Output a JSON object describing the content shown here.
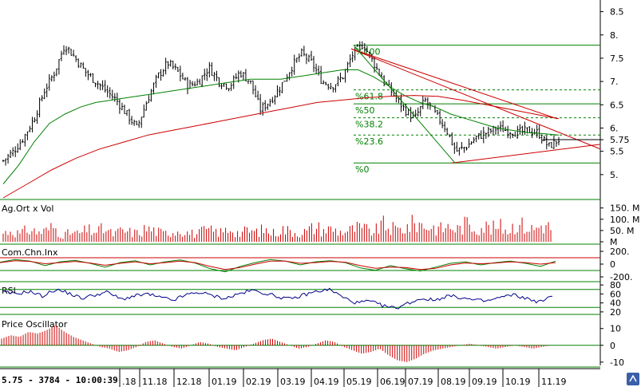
{
  "colors": {
    "candle": "#000000",
    "ma_fast": "#008000",
    "ma_slow": "#cc0000",
    "volume": "#cc0000",
    "fib_line": "#008000",
    "rsi": "#00008b",
    "oscillator": "#cc0000"
  },
  "status_bar": "5.75 - 3784 - 10:00:39",
  "chart_data": [
    {
      "type": "line",
      "panel": "price",
      "title": "",
      "yticks": [
        "8.5",
        "8.",
        "7.5",
        "7.",
        "6.5",
        "6.",
        "5.75",
        "5.5",
        "5."
      ],
      "ylim": [
        4.5,
        8.75
      ],
      "xticks": [
        ".18",
        "11.18",
        "12.18",
        "01.19",
        "02.19",
        "03.19",
        "04.19",
        "05.19",
        "06.19",
        "07.19",
        "08.19",
        "09.19",
        "10.19",
        "11.19"
      ],
      "last_value": 5.75,
      "fibonacci_levels": [
        {
          "label": "%100",
          "value": 7.78
        },
        {
          "label": "%61.8",
          "value": 6.82
        },
        {
          "label": "%50",
          "value": 6.52
        },
        {
          "label": "%38.2",
          "value": 6.22
        },
        {
          "label": "%23.6",
          "value": 5.85
        },
        {
          "label": "%0",
          "value": 5.25
        }
      ],
      "series": [
        {
          "values": [
            5.3,
            5.5,
            5.8,
            6.2,
            6.8,
            7.2,
            7.8,
            7.5,
            7.2,
            7.0,
            6.8,
            6.6,
            6.3,
            6.0,
            6.6,
            7.1,
            7.4,
            7.2,
            6.9,
            7.0,
            7.3,
            7.0,
            6.9,
            7.2,
            7.0,
            6.4,
            6.6,
            6.9,
            7.3,
            7.6,
            7.4,
            7.0,
            6.9,
            7.1,
            7.6,
            7.8,
            7.4,
            7.0,
            6.7,
            6.4,
            6.2,
            6.6,
            6.3,
            6.0,
            5.5,
            5.6,
            5.8,
            5.9,
            6.0,
            5.95,
            5.9,
            5.95,
            5.9,
            5.6,
            5.75
          ]
        },
        {
          "values": [
            4.8,
            5.2,
            5.7,
            6.1,
            6.3,
            6.45,
            6.55,
            6.6,
            6.65,
            6.7,
            6.75,
            6.8,
            6.85,
            6.9,
            6.95,
            7.0,
            7.05,
            7.05,
            7.05,
            7.1,
            7.15,
            7.2,
            7.25,
            7.25,
            7.1,
            6.9,
            6.7,
            6.55,
            6.45,
            6.3,
            6.2,
            6.1,
            6.0,
            5.95,
            5.9,
            5.88,
            5.85
          ]
        },
        {
          "values": [
            4.5,
            4.8,
            5.1,
            5.35,
            5.55,
            5.7,
            5.85,
            5.95,
            6.05,
            6.15,
            6.25,
            6.35,
            6.45,
            6.55,
            6.6,
            6.65,
            6.68,
            6.7,
            6.68,
            6.6,
            6.5,
            6.4,
            6.3,
            6.2
          ]
        }
      ],
      "trendlines": [
        {
          "from": [
            7.7
          ],
          "to": [
            6.2
          ]
        },
        {
          "from": [
            7.7
          ],
          "to": [
            5.55
          ]
        },
        {
          "from": [
            5.25
          ],
          "to": [
            5.65
          ]
        }
      ]
    },
    {
      "type": "bar",
      "panel": "volume",
      "title": "Ag.Ort x Vol",
      "yticks": [
        "150. M",
        "100. M",
        "50. M",
        "M"
      ],
      "ylim": [
        0,
        170
      ],
      "values": [
        40,
        55,
        35,
        60,
        45,
        50,
        70,
        30,
        42,
        38,
        55,
        48,
        60,
        35,
        50,
        45,
        40,
        62,
        52,
        38,
        47,
        58,
        41,
        36,
        54,
        49,
        44,
        66,
        38,
        52,
        45,
        57,
        40,
        60,
        50,
        43,
        48,
        70,
        55,
        60,
        46,
        52,
        64,
        58,
        45,
        80,
        62,
        55,
        70,
        90,
        75,
        68,
        60,
        72,
        58,
        85,
        66,
        74,
        62,
        70,
        55,
        90,
        68,
        58,
        80,
        66
      ]
    },
    {
      "type": "line",
      "panel": "cci",
      "title": "Com.Chn.Inx",
      "yticks": [
        "200.",
        "0",
        "-200."
      ],
      "ylim": [
        -250,
        250
      ],
      "series": [
        {
          "values": [
            50,
            120,
            80,
            -40,
            60,
            100,
            20,
            -80,
            40,
            90,
            -20,
            60,
            110,
            30,
            -120,
            -200,
            -60,
            40,
            120,
            80,
            -20,
            60,
            90,
            40,
            -100,
            -160,
            -40,
            -120,
            -180,
            -80,
            20,
            60,
            -20,
            40,
            80,
            20,
            -60,
            80
          ]
        },
        {
          "values": [
            40,
            90,
            70,
            10,
            40,
            70,
            30,
            -30,
            20,
            60,
            10,
            40,
            80,
            40,
            -60,
            -140,
            -90,
            0,
            80,
            80,
            20,
            40,
            70,
            50,
            -40,
            -110,
            -80,
            -90,
            -140,
            -110,
            -20,
            30,
            10,
            30,
            60,
            40,
            0,
            40
          ]
        }
      ]
    },
    {
      "type": "line",
      "panel": "rsi",
      "title": "RSI",
      "yticks": [
        "80",
        "60",
        "40",
        "20"
      ],
      "ylim": [
        18,
        82
      ],
      "values": [
        64,
        60,
        66,
        55,
        70,
        62,
        50,
        58,
        64,
        48,
        55,
        60,
        52,
        46,
        58,
        64,
        56,
        50,
        60,
        68,
        62,
        54,
        48,
        58,
        66,
        70,
        52,
        40,
        44,
        34,
        28,
        40,
        50,
        46,
        56,
        52,
        46,
        44,
        52,
        58,
        50,
        42,
        54
      ]
    },
    {
      "type": "bar",
      "panel": "price_oscillator",
      "title": "Price Oscillator",
      "yticks": [
        "10",
        "0",
        "-10"
      ],
      "ylim": [
        -12,
        17
      ],
      "values": [
        4,
        6,
        5,
        8,
        7,
        9,
        12,
        8,
        5,
        3,
        1,
        -1,
        -2,
        -4,
        -3,
        -1,
        2,
        3,
        1,
        -1,
        -2,
        0,
        2,
        1,
        -1,
        -2,
        -3,
        -1,
        1,
        3,
        4,
        2,
        0,
        -2,
        -1,
        1,
        3,
        2,
        -1,
        -3,
        -5,
        -4,
        -2,
        -6,
        -9,
        -10,
        -8,
        -5,
        -3,
        -2,
        -1,
        0,
        1,
        0,
        -1,
        -2,
        -1,
        0,
        -1,
        -2,
        -1,
        0
      ]
    }
  ]
}
